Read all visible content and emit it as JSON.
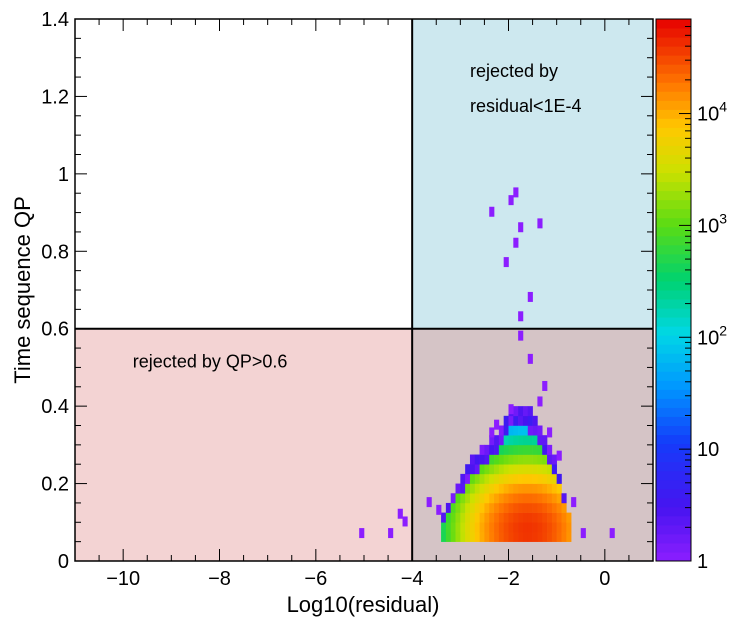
{
  "chart_data": {
    "type": "heatmap",
    "title": "",
    "xlabel": "Log10(residual)",
    "ylabel": "Time sequence QP",
    "xlim": [
      -11,
      1
    ],
    "ylim": [
      0,
      1.4
    ],
    "x_ticks": [
      -10,
      -8,
      -6,
      -4,
      -2,
      0
    ],
    "x_tick_labels": [
      "−10",
      "−8",
      "−6",
      "−4",
      "−2",
      "0"
    ],
    "y_ticks": [
      0,
      0.2,
      0.4,
      0.6,
      0.8,
      1.0,
      1.2,
      1.4
    ],
    "y_tick_labels": [
      "0",
      "0.2",
      "0.4",
      "0.6",
      "0.8",
      "1",
      "1.2",
      "1.4"
    ],
    "colorbar": {
      "scale": "log",
      "range": [
        1,
        70000
      ],
      "ticks": [
        1,
        10,
        100,
        1000,
        10000
      ],
      "tick_labels": [
        {
          "base": "1",
          "exp": ""
        },
        {
          "base": "10",
          "exp": ""
        },
        {
          "base": "10",
          "exp": "2"
        },
        {
          "base": "10",
          "exp": "3"
        },
        {
          "base": "10",
          "exp": "4"
        }
      ]
    },
    "cut_lines": {
      "x": -4,
      "y": 0.6
    },
    "regions": [
      {
        "name": "rejected-residual",
        "x_range": [
          -4,
          1
        ],
        "y_range": [
          0.6,
          1.4
        ],
        "color": "#cde8ef"
      },
      {
        "name": "rejected-qp",
        "x_range": [
          -11,
          -4
        ],
        "y_range": [
          0,
          0.6
        ],
        "color": "#f3d3d3"
      },
      {
        "name": "rejected-both",
        "x_range": [
          -4,
          1
        ],
        "y_range": [
          0,
          0.6
        ],
        "color": "#d5c4c6"
      }
    ],
    "annotations": [
      {
        "text": "rejected by",
        "x": -2.8,
        "y": 1.25
      },
      {
        "text": "residual<1E-4",
        "x": -2.8,
        "y": 1.16
      },
      {
        "text": "rejected by QP>0.6",
        "x": -9.8,
        "y": 0.5
      }
    ],
    "bin_size": {
      "dx": 0.1,
      "dy": 0.025
    },
    "core_distribution": {
      "comment": "dense 2D population; counts fall off from the peak",
      "peak_log10_residual": -1.6,
      "peak_qp": 0.08,
      "peak_count": 40000,
      "qp_min": 0.05,
      "envelope": [
        {
          "x": -3.4,
          "qp_max": 0.1
        },
        {
          "x": -3.0,
          "qp_max": 0.2
        },
        {
          "x": -2.6,
          "qp_max": 0.28
        },
        {
          "x": -2.2,
          "qp_max": 0.33
        },
        {
          "x": -1.9,
          "qp_max": 0.4
        },
        {
          "x": -1.6,
          "qp_max": 0.39
        },
        {
          "x": -1.3,
          "qp_max": 0.33
        },
        {
          "x": -1.0,
          "qp_max": 0.25
        },
        {
          "x": -0.7,
          "qp_max": 0.1
        }
      ]
    },
    "sparse_points": [
      {
        "x": -5.1,
        "y": 0.06,
        "count": 1
      },
      {
        "x": -4.5,
        "y": 0.06,
        "count": 1
      },
      {
        "x": -4.3,
        "y": 0.11,
        "count": 1
      },
      {
        "x": -4.2,
        "y": 0.09,
        "count": 1
      },
      {
        "x": -3.7,
        "y": 0.14,
        "count": 1
      },
      {
        "x": -3.5,
        "y": 0.12,
        "count": 1
      },
      {
        "x": -2.4,
        "y": 0.32,
        "count": 1
      },
      {
        "x": -2.3,
        "y": 0.34,
        "count": 1
      },
      {
        "x": -2.0,
        "y": 0.38,
        "count": 1
      },
      {
        "x": -1.4,
        "y": 0.4,
        "count": 1
      },
      {
        "x": -1.2,
        "y": 0.32,
        "count": 1
      },
      {
        "x": -1.0,
        "y": 0.26,
        "count": 1
      },
      {
        "x": -1.3,
        "y": 0.44,
        "count": 1
      },
      {
        "x": -1.6,
        "y": 0.51,
        "count": 1
      },
      {
        "x": -1.8,
        "y": 0.57,
        "count": 1
      },
      {
        "x": -1.8,
        "y": 0.62,
        "count": 1
      },
      {
        "x": -1.6,
        "y": 0.67,
        "count": 1
      },
      {
        "x": -2.1,
        "y": 0.76,
        "count": 1
      },
      {
        "x": -1.9,
        "y": 0.81,
        "count": 1
      },
      {
        "x": -1.8,
        "y": 0.85,
        "count": 1
      },
      {
        "x": -1.4,
        "y": 0.86,
        "count": 1
      },
      {
        "x": -2.4,
        "y": 0.89,
        "count": 1
      },
      {
        "x": -2.0,
        "y": 0.92,
        "count": 1
      },
      {
        "x": -1.9,
        "y": 0.94,
        "count": 1
      },
      {
        "x": -0.7,
        "y": 0.14,
        "count": 1
      },
      {
        "x": -0.5,
        "y": 0.06,
        "count": 1
      },
      {
        "x": 0.1,
        "y": 0.06,
        "count": 1
      }
    ]
  }
}
